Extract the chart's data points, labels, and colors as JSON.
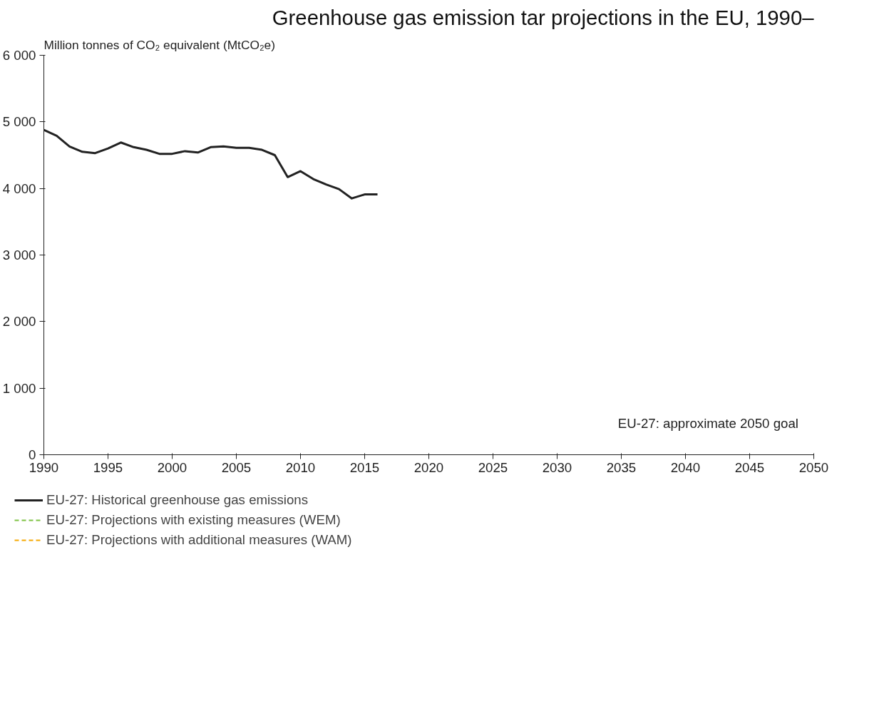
{
  "chart_data": {
    "type": "line",
    "title": "Greenhouse gas emission tar projections in the EU, 1990–",
    "ylabel": "Million tonnes of CO₂ equivalent (MtCO₂e)",
    "x": [
      1990,
      1991,
      1992,
      1993,
      1994,
      1995,
      1996,
      1997,
      1998,
      1999,
      2000,
      2001,
      2002,
      2003,
      2004,
      2005,
      2006,
      2007,
      2008,
      2009,
      2010,
      2011,
      2012,
      2013,
      2014,
      2015,
      2016
    ],
    "series": [
      {
        "name": "EU-27: Historical greenhouse gas emissions",
        "color": "#222222",
        "line_style": "solid",
        "values": [
          4880,
          4790,
          4630,
          4550,
          4530,
          4600,
          4690,
          4620,
          4580,
          4520,
          4520,
          4560,
          4540,
          4620,
          4630,
          4610,
          4610,
          4580,
          4500,
          4170,
          4260,
          4140,
          4060,
          3990,
          3850,
          3910,
          3910
        ]
      },
      {
        "name": "EU-27: Projections with existing measures (WEM)",
        "color": "#7dc242",
        "line_style": "dashed",
        "values": [
          null,
          null,
          null,
          null,
          null,
          null,
          null,
          null,
          null,
          null,
          null,
          null,
          null,
          null,
          null,
          null,
          null,
          null,
          null,
          null,
          null,
          null,
          null,
          null,
          null,
          null,
          null
        ]
      },
      {
        "name": "EU-27: Projections with additional measures (WAM)",
        "color": "#f5a800",
        "line_style": "dashed",
        "values": [
          null,
          null,
          null,
          null,
          null,
          null,
          null,
          null,
          null,
          null,
          null,
          null,
          null,
          null,
          null,
          null,
          null,
          null,
          null,
          null,
          null,
          null,
          null,
          null,
          null,
          null,
          null
        ]
      }
    ],
    "xlim": [
      1990,
      2050
    ],
    "xticks": [
      1990,
      1995,
      2000,
      2005,
      2010,
      2015,
      2020,
      2025,
      2030,
      2035,
      2040,
      2045,
      2050
    ],
    "ylim": [
      0,
      6000
    ],
    "yticks": [
      0,
      {
        "value": 1000,
        "label": "1 000"
      },
      {
        "value": 2000,
        "label": "2 000"
      },
      {
        "value": 3000,
        "label": "3 000"
      },
      {
        "value": 4000,
        "label": "4 000"
      },
      {
        "value": 5000,
        "label": "5 000"
      },
      {
        "value": 6000,
        "label": "6 000"
      }
    ],
    "annotations": [
      "EU-27: approximate 2050 goal"
    ],
    "grid": false,
    "legend": "bottom left"
  }
}
